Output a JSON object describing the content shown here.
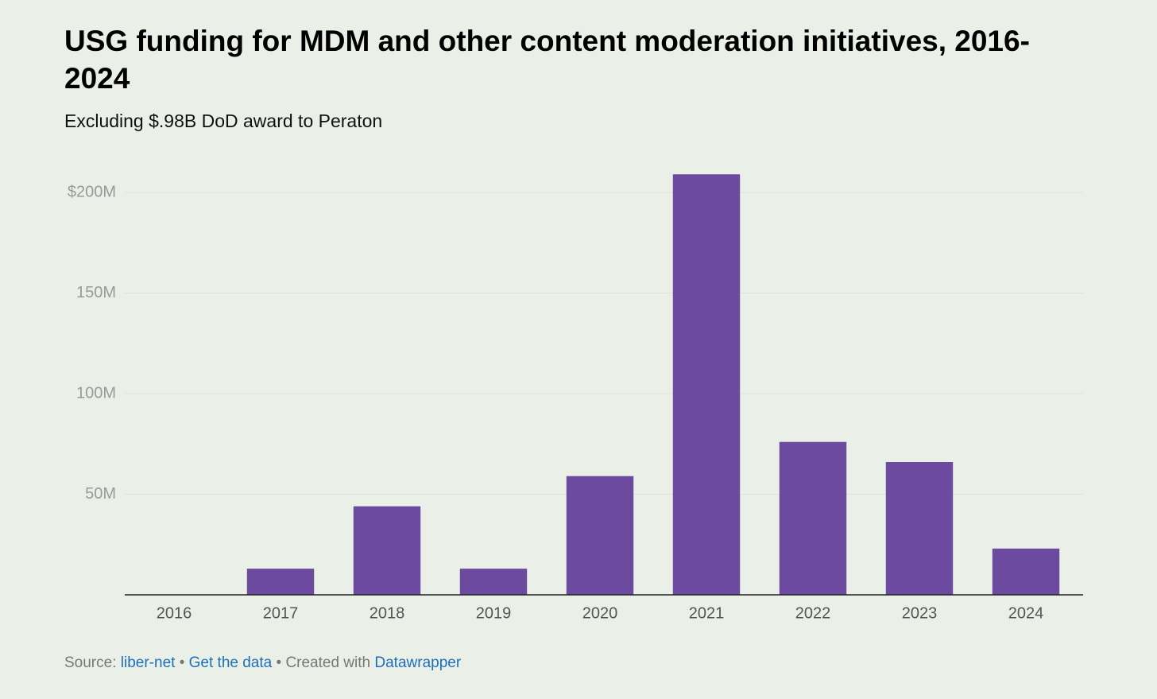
{
  "chart_data": {
    "type": "bar",
    "title": "USG funding for MDM and other content moderation initiatives, 2016-2024",
    "subtitle": "Excluding $.98B DoD award to Peraton",
    "categories": [
      "2016",
      "2017",
      "2018",
      "2019",
      "2020",
      "2021",
      "2022",
      "2023",
      "2024"
    ],
    "values": [
      0,
      13000000,
      44000000,
      13000000,
      59000000,
      209000000,
      76000000,
      66000000,
      23000000
    ],
    "color": "#6c4a9f",
    "ylim": [
      0,
      200000000
    ],
    "yticks": [
      {
        "value": 50000000,
        "label": "50M"
      },
      {
        "value": 100000000,
        "label": "100M"
      },
      {
        "value": 150000000,
        "label": "150M"
      },
      {
        "value": 200000000,
        "label": "$200M"
      }
    ],
    "grid": true
  },
  "footer": {
    "source_label": "Source:",
    "source": "liber-net",
    "separator": "•",
    "get_data": "Get the data",
    "created_with": "Created with",
    "tool": "Datawrapper"
  }
}
